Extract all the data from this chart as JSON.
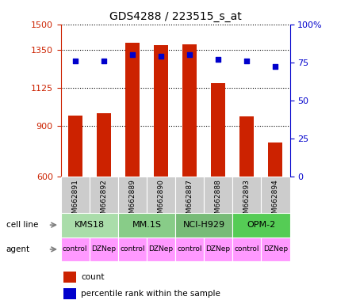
{
  "title": "GDS4288 / 223515_s_at",
  "samples": [
    "GSM662891",
    "GSM662892",
    "GSM662889",
    "GSM662890",
    "GSM662887",
    "GSM662888",
    "GSM662893",
    "GSM662894"
  ],
  "counts": [
    960,
    975,
    1390,
    1375,
    1380,
    1150,
    955,
    800
  ],
  "percentile_ranks": [
    76,
    76,
    80,
    79,
    80,
    77,
    76,
    72
  ],
  "ylim_left": [
    600,
    1500
  ],
  "yticks_left": [
    600,
    900,
    1125,
    1350,
    1500
  ],
  "ylim_right": [
    0,
    100
  ],
  "yticks_right": [
    0,
    25,
    50,
    75,
    100
  ],
  "yticks_right_labels": [
    "0",
    "25",
    "50",
    "75",
    "100%"
  ],
  "cell_lines": [
    {
      "label": "KMS18",
      "start": 0,
      "end": 2,
      "color": "#AADDAA"
    },
    {
      "label": "MM.1S",
      "start": 2,
      "end": 4,
      "color": "#88CC88"
    },
    {
      "label": "NCI-H929",
      "start": 4,
      "end": 6,
      "color": "#77BB77"
    },
    {
      "label": "OPM-2",
      "start": 6,
      "end": 8,
      "color": "#55CC55"
    }
  ],
  "agents": [
    "control",
    "DZNep",
    "control",
    "DZNep",
    "control",
    "DZNep",
    "control",
    "DZNep"
  ],
  "bar_color": "#CC2200",
  "dot_color": "#0000CC",
  "bar_bottom": 600,
  "legend_count_color": "#CC2200",
  "legend_pct_color": "#0000CC",
  "background_color": "#ffffff",
  "plot_bg_color": "#ffffff",
  "left_tick_color": "#CC2200",
  "right_tick_color": "#0000CC"
}
